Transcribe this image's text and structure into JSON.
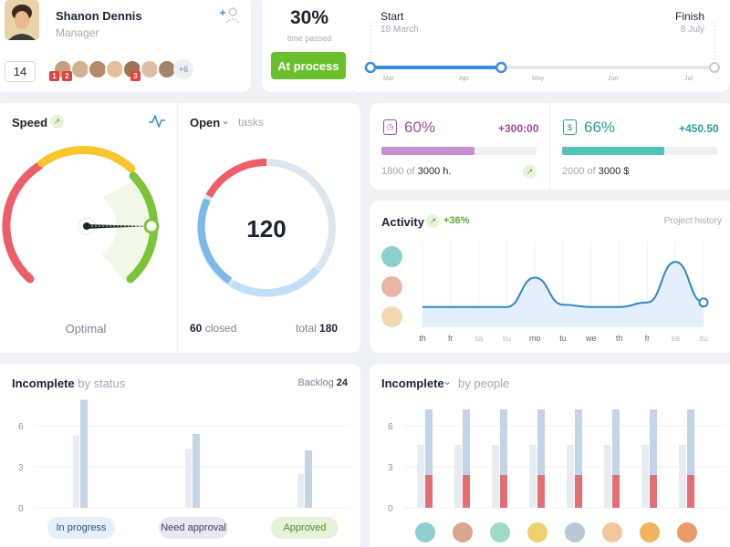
{
  "profile": {
    "name": "Shanon Dennis",
    "role": "Manager",
    "count": "14",
    "more": "+6",
    "badges": [
      "1",
      "2",
      "3"
    ]
  },
  "time": {
    "percent": "30%",
    "caption": "time passed",
    "button": "At process"
  },
  "timeline": {
    "start_label": "Start",
    "start_date": "18 March",
    "finish_label": "Finish",
    "finish_date": "8 July",
    "months": [
      "Mar",
      "Apr",
      "May",
      "Jun",
      "Jul"
    ],
    "progress": 0.38
  },
  "speed": {
    "title": "Speed",
    "status": "Optimal",
    "colors": {
      "red": "#ec5f69",
      "yellow": "#f8c52c",
      "green": "#7cc33a"
    }
  },
  "open_tasks": {
    "title": "Open",
    "subtitle": "tasks",
    "total_value": "120",
    "closed_num": "60",
    "closed_label": "closed",
    "total_label": "total",
    "total_num": "180"
  },
  "stats": [
    {
      "percent": "60%",
      "delta": "+300:00",
      "from": "1800 of",
      "to": "3000 h.",
      "fill": 0.6,
      "color": "#c98fd0",
      "text_color": "#9a4e98"
    },
    {
      "percent": "66%",
      "delta": "+450.50",
      "from": "2000 of",
      "to": "3000 $",
      "fill": 0.66,
      "color": "#53c2b8",
      "text_color": "#2a9f96"
    }
  ],
  "activity": {
    "title": "Activity",
    "change": "+36%",
    "link": "Project history",
    "days": [
      "th",
      "fr",
      "sa",
      "su",
      "mo",
      "tu",
      "we",
      "th",
      "fr",
      "sa",
      "su"
    ],
    "weekend_idx": [
      2,
      3,
      9,
      10
    ]
  },
  "incomplete_status": {
    "title": "Incomplete",
    "subtitle": "by status",
    "backlog_label": "Backlog",
    "backlog_value": "24",
    "yticks": [
      "6",
      "3",
      "0"
    ],
    "pills": [
      "In progress",
      "Need approval",
      "Approved"
    ]
  },
  "incomplete_people": {
    "title": "Incomplete",
    "subtitle": "by people",
    "yticks": [
      "6",
      "3",
      "0"
    ]
  },
  "chart_data": [
    {
      "type": "bar",
      "title": "Incomplete by status",
      "categories": [
        "In progress",
        "Need approval",
        "Approved"
      ],
      "series": [
        {
          "values": [
            5.3,
            4.3,
            2.5
          ]
        },
        {
          "values": [
            7.9,
            5.4,
            4.2
          ]
        }
      ],
      "ylim": [
        0,
        8
      ],
      "yticks": [
        0,
        3,
        6
      ]
    },
    {
      "type": "bar",
      "title": "Incomplete by people",
      "categories": [
        "1",
        "2",
        "3",
        "4",
        "5",
        "6",
        "7",
        "8"
      ],
      "series": [
        {
          "values": [
            4.6,
            4.6,
            4.6,
            4.6,
            4.6,
            4.6,
            4.6,
            4.6
          ]
        },
        {
          "values": [
            7.2,
            7.2,
            7.2,
            7.2,
            7.2,
            7.2,
            7.2,
            7.2
          ]
        },
        {
          "values": [
            2.4,
            2.4,
            2.4,
            2.4,
            2.4,
            2.4,
            2.4,
            2.4
          ]
        }
      ],
      "ylim": [
        0,
        8
      ],
      "yticks": [
        0,
        3,
        6
      ]
    },
    {
      "type": "area",
      "title": "Activity",
      "categories": [
        "th",
        "fr",
        "sa",
        "su",
        "mo",
        "tu",
        "we",
        "th",
        "fr",
        "sa",
        "su"
      ],
      "values": [
        0.9,
        0.9,
        0.9,
        0.9,
        2.2,
        1.0,
        0.9,
        0.9,
        1.1,
        2.9,
        1.1
      ],
      "ylim": [
        0,
        4
      ]
    },
    {
      "type": "pie",
      "title": "Open tasks",
      "values": [
        60,
        120
      ],
      "labels": [
        "closed",
        "open"
      ]
    }
  ]
}
